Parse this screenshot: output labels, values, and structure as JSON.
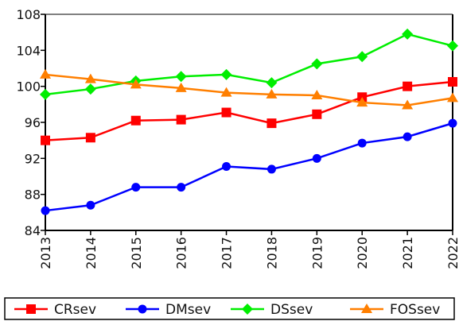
{
  "chart_data": {
    "type": "line",
    "title": "",
    "xlabel": "",
    "ylabel": "",
    "x": [
      "2013",
      "2014",
      "2015",
      "2016",
      "2017",
      "2018",
      "2019",
      "2020",
      "2021",
      "2022"
    ],
    "ylim": [
      84,
      108
    ],
    "yticks": [
      "84",
      "88",
      "92",
      "96",
      "100",
      "104",
      "108"
    ],
    "grid": false,
    "legend_position": "bottom",
    "series": [
      {
        "name": "CRsev",
        "color": "#ff0000",
        "marker": "square",
        "values": [
          94.0,
          94.3,
          96.2,
          96.3,
          97.1,
          95.9,
          96.9,
          98.8,
          100.0,
          100.5
        ]
      },
      {
        "name": "DMsev",
        "color": "#0000ff",
        "marker": "circle",
        "values": [
          86.2,
          86.8,
          88.8,
          88.8,
          91.1,
          90.8,
          92.0,
          93.7,
          94.4,
          95.9
        ]
      },
      {
        "name": "DSsev",
        "color": "#00ee00",
        "marker": "diamond",
        "values": [
          99.1,
          99.7,
          100.6,
          101.1,
          101.3,
          100.4,
          102.5,
          103.3,
          105.8,
          104.5
        ]
      },
      {
        "name": "FOSsev",
        "color": "#ff7f00",
        "marker": "triangle",
        "values": [
          101.3,
          100.8,
          100.2,
          99.8,
          99.3,
          99.1,
          99.0,
          98.2,
          97.9,
          98.7
        ]
      }
    ]
  }
}
